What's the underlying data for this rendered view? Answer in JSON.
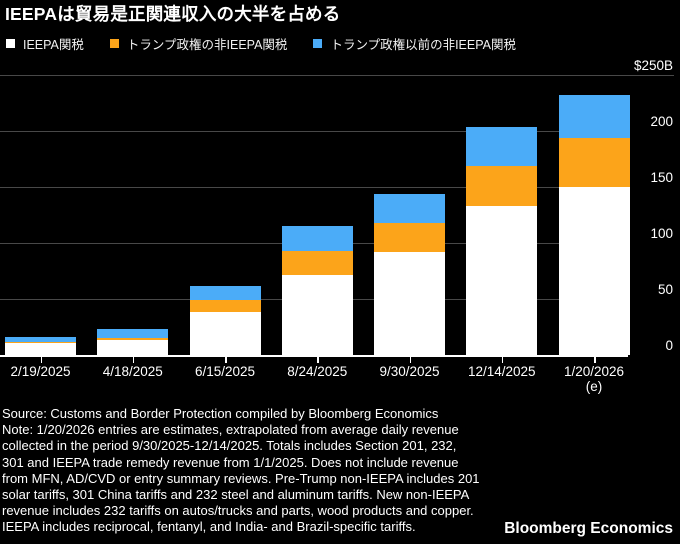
{
  "title": "IEEPAは貿易是正関連収入の大半を占める",
  "colors": {
    "background": "#000000",
    "ieepa": "#ffffff",
    "trump_non_ieepa": "#fca41a",
    "pre_trump_non_ieepa": "#4bacf8",
    "gridline": "#484848",
    "axis": "#ffffff",
    "text": "#ffffff"
  },
  "legend": [
    {
      "label": "IEEPA関税",
      "color": "#ffffff"
    },
    {
      "label": "トランプ政権の非IEEPA関税",
      "color": "#fca41a"
    },
    {
      "label": "トランプ政権以前の非IEEPA関税",
      "color": "#4bacf8"
    }
  ],
  "chart_data": {
    "type": "bar",
    "stacked": true,
    "title": "IEEPAは貿易是正関連収入の大半を占める",
    "unit": "$B",
    "categories": [
      "2/19/2025",
      "4/18/2025",
      "6/15/2025",
      "8/24/2025",
      "9/30/2025",
      "12/14/2025",
      "1/20/2026"
    ],
    "last_category_suffix": "(e)",
    "series": [
      {
        "name": "IEEPA関税",
        "color": "#ffffff",
        "values": [
          11,
          13,
          38,
          71,
          92,
          133,
          150
        ]
      },
      {
        "name": "トランプ政権の非IEEPA関税",
        "color": "#fca41a",
        "values": [
          1,
          2,
          11,
          22,
          26,
          36,
          44
        ]
      },
      {
        "name": "トランプ政権以前の非IEEPA関税",
        "color": "#4bacf8",
        "values": [
          4,
          8,
          13,
          22,
          26,
          35,
          38
        ]
      }
    ],
    "totals": [
      16,
      23,
      62,
      115,
      144,
      204,
      232
    ],
    "ylim": [
      0,
      250
    ],
    "yticks": [
      0,
      50,
      100,
      150,
      200,
      250
    ],
    "ytick_labels": [
      "0",
      "50",
      "100",
      "150",
      "200",
      "$250B"
    ],
    "grid": "horizontal",
    "legend_position": "top"
  },
  "footer": {
    "lines": [
      "Source: Customs and Border Protection compiled by Bloomberg Economics",
      "Note: 1/20/2026 entries are estimates, extrapolated from average daily revenue",
      "collected in the period 9/30/2025-12/14/2025. Totals includes Section 201, 232,",
      "301 and IEEPA trade remedy revenue from 1/1/2025. Does not include revenue",
      "from MFN, AD/CVD or entry summary reviews. Pre-Trump non-IEEPA includes 201",
      "solar tariffs, 301 China tariffs and 232 steel and aluminum tariffs. New non-IEEPA",
      "revenue includes 232 tariffs on autos/trucks and parts, wood products and copper.",
      "IEEPA includes reciprocal, fentanyl, and India- and Brazil-specific tariffs."
    ],
    "brand": "Bloomberg Economics"
  }
}
